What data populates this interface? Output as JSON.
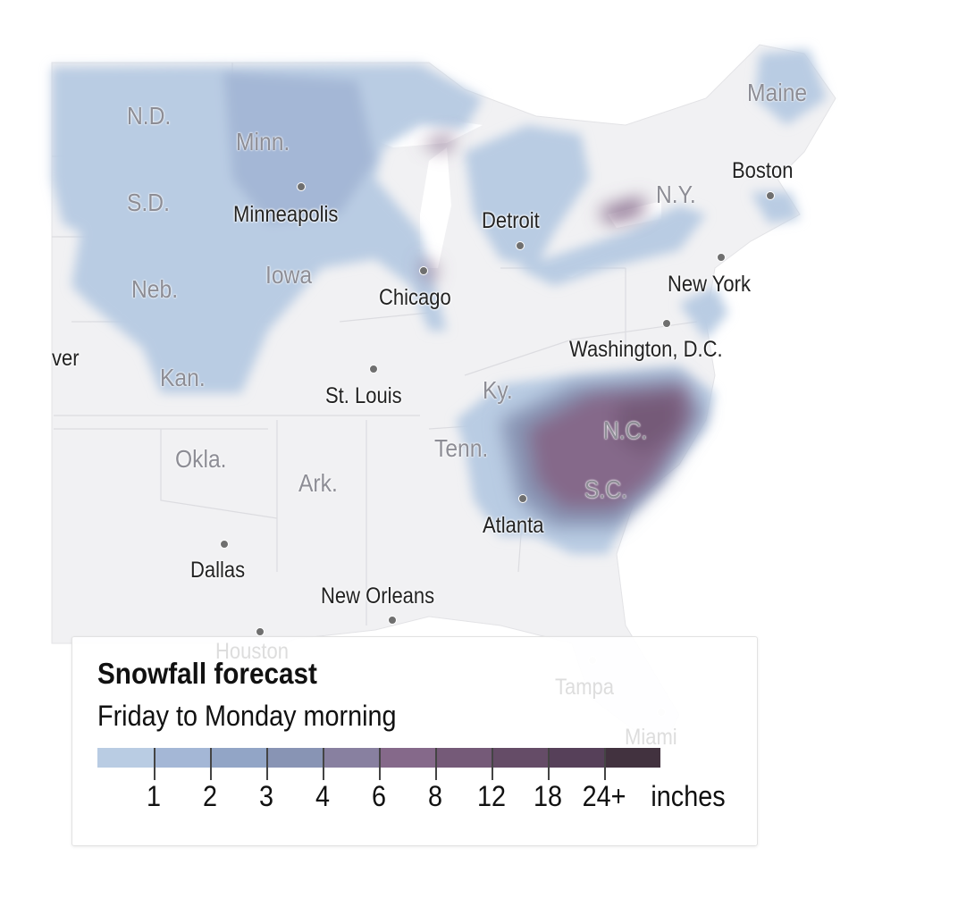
{
  "legend": {
    "title": "Snowfall forecast",
    "subtitle": "Friday to Monday morning",
    "unit": "inches",
    "thresholds": [
      "1",
      "2",
      "3",
      "4",
      "6",
      "8",
      "12",
      "18",
      "24+"
    ],
    "colors": [
      "#b9cce3",
      "#a4b7d6",
      "#92a5c6",
      "#8894b4",
      "#8880a0",
      "#85698a",
      "#755a78",
      "#654c67",
      "#564059",
      "#42323f"
    ]
  },
  "cities": [
    {
      "name": "Minneapolis"
    },
    {
      "name": "Detroit"
    },
    {
      "name": "Chicago"
    },
    {
      "name": "Boston"
    },
    {
      "name": "New York"
    },
    {
      "name": "Washington, D.C."
    },
    {
      "name": "St. Louis"
    },
    {
      "name": "Atlanta"
    },
    {
      "name": "Dallas"
    },
    {
      "name": "New Orleans"
    },
    {
      "name": "Houston"
    },
    {
      "name": "Tampa"
    },
    {
      "name": "Miami"
    },
    {
      "name": "ver"
    }
  ],
  "states": [
    "N.D.",
    "Minn.",
    "S.D.",
    "Neb.",
    "Iowa",
    "Kan.",
    "Okla.",
    "Ark.",
    "Ky.",
    "Tenn.",
    "N.C.",
    "S.C.",
    "N.Y.",
    "Maine"
  ]
}
